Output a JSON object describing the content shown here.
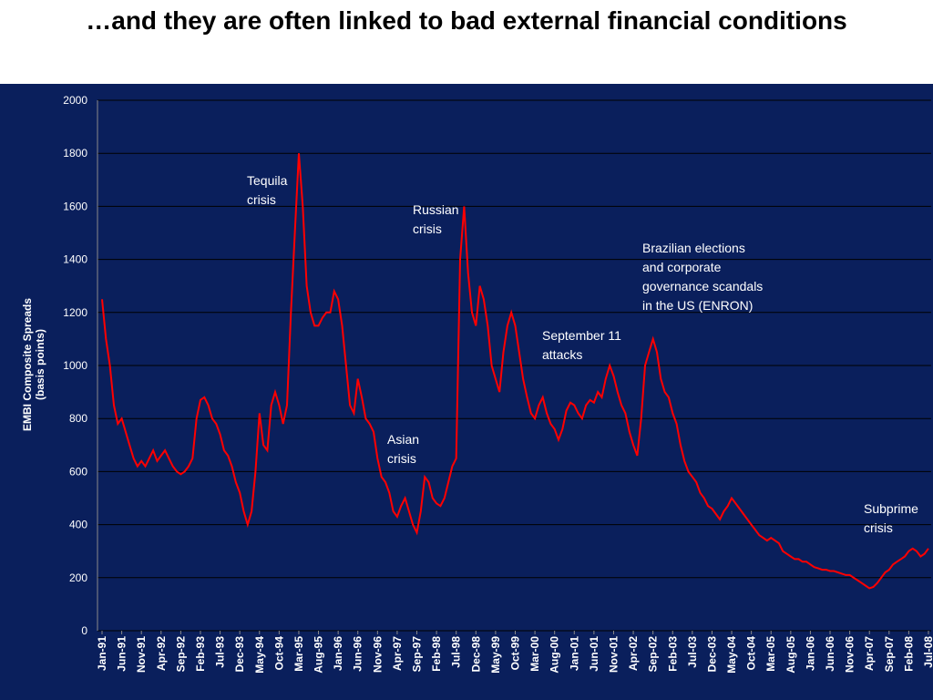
{
  "chart_data": {
    "type": "line",
    "title": "…and they are often linked to bad external financial conditions",
    "y_label": [
      "EMBI Composite Spreads",
      "(basis points)"
    ],
    "x": [
      "Jan-91",
      "Feb-91",
      "Mar-91",
      "Apr-91",
      "May-91",
      "Jun-91",
      "Jul-91",
      "Aug-91",
      "Sep-91",
      "Oct-91",
      "Nov-91",
      "Dec-91",
      "Jan-92",
      "Feb-92",
      "Mar-92",
      "Apr-92",
      "May-92",
      "Jun-92",
      "Jul-92",
      "Aug-92",
      "Sep-92",
      "Oct-92",
      "Nov-92",
      "Dec-92",
      "Jan-93",
      "Feb-93",
      "Mar-93",
      "Apr-93",
      "May-93",
      "Jun-93",
      "Jul-93",
      "Aug-93",
      "Sep-93",
      "Oct-93",
      "Nov-93",
      "Dec-93",
      "Jan-94",
      "Feb-94",
      "Mar-94",
      "Apr-94",
      "May-94",
      "Jun-94",
      "Jul-94",
      "Aug-94",
      "Sep-94",
      "Oct-94",
      "Nov-94",
      "Dec-94",
      "Jan-95",
      "Feb-95",
      "Mar-95",
      "Apr-95",
      "May-95",
      "Jun-95",
      "Jul-95",
      "Aug-95",
      "Sep-95",
      "Oct-95",
      "Nov-95",
      "Dec-95",
      "Jan-96",
      "Feb-96",
      "Mar-96",
      "Apr-96",
      "May-96",
      "Jun-96",
      "Jul-96",
      "Aug-96",
      "Sep-96",
      "Oct-96",
      "Nov-96",
      "Dec-96",
      "Jan-97",
      "Feb-97",
      "Mar-97",
      "Apr-97",
      "May-97",
      "Jun-97",
      "Jul-97",
      "Aug-97",
      "Sep-97",
      "Oct-97",
      "Nov-97",
      "Dec-97",
      "Jan-98",
      "Feb-98",
      "Mar-98",
      "Apr-98",
      "May-98",
      "Jun-98",
      "Jul-98",
      "Aug-98",
      "Sep-98",
      "Oct-98",
      "Nov-98",
      "Dec-98",
      "Jan-99",
      "Feb-99",
      "Mar-99",
      "Apr-99",
      "May-99",
      "Jun-99",
      "Jul-99",
      "Aug-99",
      "Sep-99",
      "Oct-99",
      "Nov-99",
      "Dec-99",
      "Jan-00",
      "Feb-00",
      "Mar-00",
      "Apr-00",
      "May-00",
      "Jun-00",
      "Jul-00",
      "Aug-00",
      "Sep-00",
      "Oct-00",
      "Nov-00",
      "Dec-00",
      "Jan-01",
      "Feb-01",
      "Mar-01",
      "Apr-01",
      "May-01",
      "Jun-01",
      "Jul-01",
      "Aug-01",
      "Sep-01",
      "Oct-01",
      "Nov-01",
      "Dec-01",
      "Jan-02",
      "Feb-02",
      "Mar-02",
      "Apr-02",
      "May-02",
      "Jun-02",
      "Jul-02",
      "Aug-02",
      "Sep-02",
      "Oct-02",
      "Nov-02",
      "Dec-02",
      "Jan-03",
      "Feb-03",
      "Mar-03",
      "Apr-03",
      "May-03",
      "Jun-03",
      "Jul-03",
      "Aug-03",
      "Sep-03",
      "Oct-03",
      "Nov-03",
      "Dec-03",
      "Jan-04",
      "Feb-04",
      "Mar-04",
      "Apr-04",
      "May-04",
      "Jun-04",
      "Jul-04",
      "Aug-04",
      "Sep-04",
      "Oct-04",
      "Nov-04",
      "Dec-04",
      "Jan-05",
      "Feb-05",
      "Mar-05",
      "Apr-05",
      "May-05",
      "Jun-05",
      "Jul-05",
      "Aug-05",
      "Sep-05",
      "Oct-05",
      "Nov-05",
      "Dec-05",
      "Jan-06",
      "Feb-06",
      "Mar-06",
      "Apr-06",
      "May-06",
      "Jun-06",
      "Jul-06",
      "Aug-06",
      "Sep-06",
      "Oct-06",
      "Nov-06",
      "Dec-06",
      "Jan-07",
      "Feb-07",
      "Mar-07",
      "Apr-07",
      "May-07",
      "Jun-07",
      "Jul-07",
      "Aug-07",
      "Sep-07",
      "Oct-07",
      "Nov-07",
      "Dec-07",
      "Jan-08",
      "Feb-08",
      "Mar-08",
      "Apr-08",
      "May-08",
      "Jun-08",
      "Jul-08"
    ],
    "series": [
      {
        "color": "#ff0000",
        "values": [
          1250,
          1100,
          1000,
          850,
          780,
          800,
          750,
          700,
          650,
          620,
          640,
          620,
          650,
          680,
          640,
          660,
          680,
          650,
          620,
          600,
          590,
          600,
          620,
          650,
          800,
          870,
          880,
          850,
          800,
          780,
          740,
          680,
          660,
          620,
          560,
          520,
          450,
          400,
          450,
          600,
          820,
          700,
          680,
          850,
          900,
          850,
          780,
          850,
          1200,
          1500,
          1800,
          1600,
          1300,
          1200,
          1150,
          1150,
          1180,
          1200,
          1200,
          1280,
          1250,
          1150,
          1000,
          850,
          820,
          950,
          880,
          800,
          780,
          750,
          650,
          580,
          560,
          520,
          450,
          430,
          470,
          500,
          450,
          400,
          370,
          450,
          580,
          560,
          500,
          480,
          470,
          500,
          560,
          620,
          650,
          1400,
          1600,
          1350,
          1200,
          1150,
          1300,
          1250,
          1150,
          1000,
          950,
          900,
          1050,
          1150,
          1200,
          1150,
          1050,
          950,
          880,
          820,
          800,
          850,
          880,
          820,
          780,
          760,
          720,
          760,
          830,
          860,
          850,
          820,
          800,
          850,
          870,
          860,
          900,
          880,
          950,
          1000,
          960,
          900,
          850,
          820,
          750,
          700,
          660,
          800,
          1000,
          1050,
          1100,
          1050,
          950,
          900,
          880,
          820,
          780,
          700,
          640,
          600,
          580,
          560,
          520,
          500,
          470,
          460,
          440,
          420,
          450,
          470,
          500,
          480,
          460,
          440,
          420,
          400,
          380,
          360,
          350,
          340,
          350,
          340,
          330,
          300,
          290,
          280,
          270,
          270,
          260,
          260,
          250,
          240,
          235,
          230,
          230,
          225,
          225,
          220,
          215,
          210,
          210,
          200,
          190,
          180,
          170,
          160,
          165,
          180,
          200,
          220,
          230,
          250,
          260,
          270,
          280,
          300,
          310,
          300,
          280,
          290,
          310
        ]
      }
    ],
    "xticks": [
      "Jan-91",
      "Jun-91",
      "Nov-91",
      "Apr-92",
      "Sep-92",
      "Feb-93",
      "Jul-93",
      "Dec-93",
      "May-94",
      "Oct-94",
      "Mar-95",
      "Aug-95",
      "Jan-96",
      "Jun-96",
      "Nov-96",
      "Apr-97",
      "Sep-97",
      "Feb-98",
      "Jul-98",
      "Dec-98",
      "May-99",
      "Oct-99",
      "Mar-00",
      "Aug-00",
      "Jan-01",
      "Jun-01",
      "Nov-01",
      "Apr-02",
      "Sep-02",
      "Feb-03",
      "Jul-03",
      "Dec-03",
      "May-04",
      "Oct-04",
      "Mar-05",
      "Aug-05",
      "Jan-06",
      "Jun-06",
      "Nov-06",
      "Apr-07",
      "Sep-07",
      "Feb-08",
      "Jul-08"
    ],
    "ylim": [
      0,
      2000
    ],
    "yticks": [
      0,
      200,
      400,
      600,
      800,
      1000,
      1200,
      1400,
      1600,
      1800,
      2000
    ],
    "grid": true,
    "annotations": [
      [
        "Tequila",
        "crisis"
      ],
      [
        "Russian",
        "crisis"
      ],
      [
        "Asian",
        "crisis"
      ],
      [
        "September 11",
        "attacks"
      ],
      [
        "Brazilian elections",
        "and corporate",
        "governance scandals",
        "in the US (ENRON)"
      ],
      [
        "Subprime",
        "crisis"
      ]
    ]
  }
}
